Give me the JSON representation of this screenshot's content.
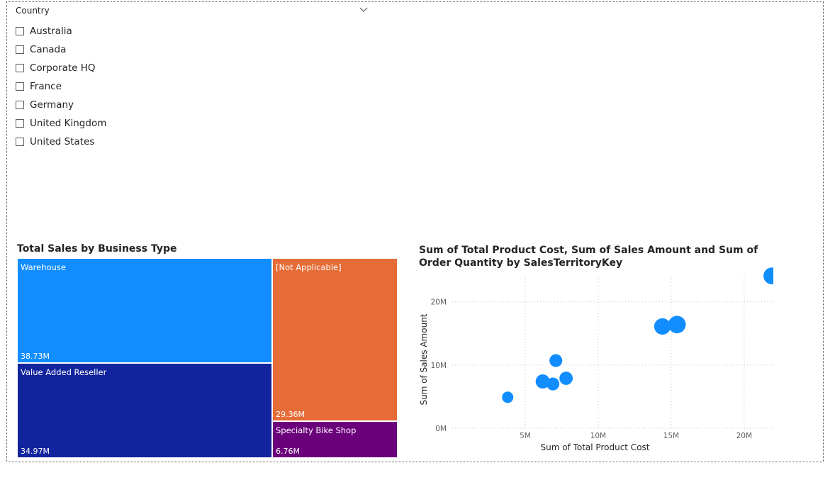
{
  "slicer": {
    "title": "Country",
    "items": [
      "Australia",
      "Canada",
      "Corporate HQ",
      "France",
      "Germany",
      "United Kingdom",
      "United States"
    ]
  },
  "treemap": {
    "title": "Total Sales by Business Type",
    "tiles": [
      {
        "name": "Warehouse",
        "value": "38.73M",
        "color": "#118dff"
      },
      {
        "name": "Value Added Reseller",
        "value": "34.97M",
        "color": "#12239e"
      },
      {
        "name": "[Not Applicable]",
        "value": "29.36M",
        "color": "#e66c37"
      },
      {
        "name": "Specialty Bike Shop",
        "value": "6.76M",
        "color": "#6b007b"
      }
    ]
  },
  "chart_data": {
    "type": "scatter",
    "title": "Sum of Total Product Cost, Sum of Sales Amount and Sum of Order Quantity by SalesTerritoryKey",
    "xlabel": "Sum of Total Product Cost",
    "ylabel": "Sum of Sales Amount",
    "xlim": [
      0,
      22000000
    ],
    "ylim": [
      0,
      24000000
    ],
    "xticks": [
      {
        "v": 5000000,
        "label": "5M"
      },
      {
        "v": 10000000,
        "label": "10M"
      },
      {
        "v": 15000000,
        "label": "15M"
      },
      {
        "v": 20000000,
        "label": "20M"
      }
    ],
    "yticks": [
      {
        "v": 0,
        "label": "0M"
      },
      {
        "v": 10000000,
        "label": "10M"
      },
      {
        "v": 20000000,
        "label": "20M"
      }
    ],
    "grid": true,
    "color": "#118dff",
    "points": [
      {
        "x": 3800000,
        "y": 4900000,
        "size": 1
      },
      {
        "x": 6200000,
        "y": 7400000,
        "size": 1.6
      },
      {
        "x": 6900000,
        "y": 7000000,
        "size": 1.3
      },
      {
        "x": 7100000,
        "y": 10700000,
        "size": 1.3
      },
      {
        "x": 7800000,
        "y": 7900000,
        "size": 1.4
      },
      {
        "x": 14400000,
        "y": 16100000,
        "size": 2.2
      },
      {
        "x": 15400000,
        "y": 16400000,
        "size": 2.5
      },
      {
        "x": 21900000,
        "y": 24100000,
        "size": 2.3
      }
    ]
  }
}
